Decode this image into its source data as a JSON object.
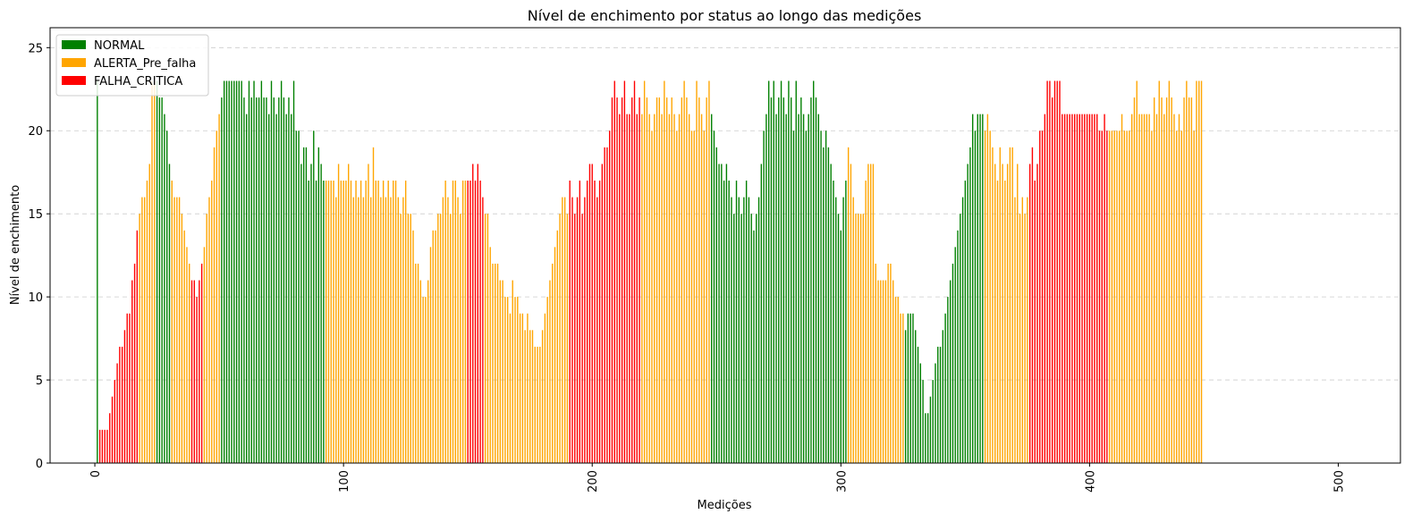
{
  "chart_data": {
    "type": "bar",
    "title": "Nível de enchimento por status ao longo das medições",
    "xlabel": "Medições",
    "ylabel": "Nível de enchimento",
    "xlim": [
      -18,
      525
    ],
    "ylim": [
      0,
      26.2
    ],
    "xticks": [
      0,
      100,
      200,
      300,
      400,
      500
    ],
    "yticks": [
      0,
      5,
      10,
      15,
      20,
      25
    ],
    "x_tick_rotation": 90,
    "grid": "y-dashed",
    "legend_position": "top-left",
    "status_colors": {
      "NORMAL": "#008000",
      "ALERTA_Pre_falha": "#ffa500",
      "FALHA_CRITICA": "#ff0000"
    },
    "legend": [
      "NORMAL",
      "ALERTA_Pre_falha",
      "FALHA_CRITICA"
    ],
    "x_start": 1,
    "values": [
      23,
      2,
      2,
      2,
      2,
      3,
      4,
      5,
      6,
      7,
      7,
      8,
      9,
      9,
      11,
      12,
      14,
      15,
      16,
      16,
      17,
      18,
      23,
      23,
      23,
      22,
      22,
      21,
      20,
      18,
      17,
      16,
      16,
      16,
      15,
      14,
      13,
      12,
      11,
      11,
      10,
      11,
      12,
      13,
      15,
      16,
      17,
      19,
      20,
      21,
      22,
      23,
      23,
      23,
      23,
      23,
      23,
      23,
      23,
      22,
      21,
      23,
      22,
      23,
      22,
      22,
      23,
      22,
      22,
      21,
      23,
      22,
      21,
      22,
      23,
      22,
      21,
      22,
      21,
      23,
      20,
      20,
      18,
      19,
      19,
      17,
      18,
      20,
      17,
      19,
      18,
      17,
      17,
      17,
      17,
      17,
      16,
      18,
      17,
      17,
      17,
      18,
      17,
      16,
      17,
      16,
      17,
      16,
      17,
      18,
      16,
      19,
      17,
      17,
      16,
      17,
      16,
      17,
      16,
      17,
      17,
      16,
      15,
      16,
      17,
      15,
      15,
      14,
      12,
      12,
      11,
      10,
      10,
      11,
      13,
      14,
      14,
      15,
      15,
      16,
      17,
      16,
      15,
      17,
      17,
      16,
      15,
      17,
      17,
      17,
      17,
      18,
      17,
      18,
      17,
      16,
      15,
      15,
      13,
      12,
      12,
      12,
      11,
      11,
      10,
      10,
      9,
      11,
      10,
      10,
      9,
      9,
      8,
      9,
      8,
      8,
      7,
      7,
      7,
      8,
      9,
      10,
      11,
      12,
      13,
      14,
      15,
      16,
      16,
      15,
      17,
      16,
      15,
      16,
      17,
      15,
      16,
      17,
      18,
      18,
      17,
      16,
      17,
      18,
      19,
      19,
      20,
      22,
      23,
      22,
      21,
      22,
      23,
      21,
      21,
      22,
      23,
      21,
      22,
      21,
      23,
      22,
      21,
      20,
      21,
      22,
      22,
      21,
      23,
      22,
      21,
      22,
      21,
      20,
      21,
      22,
      23,
      22,
      21,
      20,
      20,
      23,
      22,
      21,
      20,
      22,
      23,
      21,
      20,
      19,
      18,
      18,
      17,
      18,
      17,
      16,
      15,
      17,
      16,
      15,
      16,
      17,
      16,
      15,
      14,
      15,
      16,
      18,
      20,
      21,
      23,
      22,
      23,
      21,
      22,
      23,
      22,
      21,
      23,
      22,
      20,
      23,
      21,
      22,
      21,
      20,
      21,
      22,
      23,
      22,
      21,
      20,
      19,
      20,
      19,
      18,
      17,
      16,
      15,
      14,
      16,
      17,
      19,
      18,
      16,
      15,
      15,
      15,
      15,
      17,
      18,
      18,
      18,
      12,
      11,
      11,
      11,
      11,
      12,
      12,
      11,
      10,
      10,
      9,
      9,
      8,
      9,
      9,
      9,
      8,
      7,
      6,
      5,
      3,
      3,
      4,
      5,
      6,
      7,
      7,
      8,
      9,
      10,
      11,
      12,
      13,
      14,
      15,
      16,
      17,
      18,
      19,
      21,
      20,
      21,
      21,
      21,
      20,
      21,
      20,
      19,
      18,
      17,
      19,
      18,
      17,
      18,
      19,
      19,
      16,
      18,
      15,
      16,
      15,
      16,
      18,
      19,
      17,
      18,
      20,
      20,
      21,
      23,
      23,
      22,
      23,
      23,
      23,
      21,
      21,
      21,
      21,
      21,
      21,
      21,
      21,
      21,
      21,
      21,
      21,
      21,
      21,
      21,
      20,
      20,
      21,
      20,
      20,
      20,
      20,
      20,
      20,
      21,
      20,
      20,
      20,
      21,
      22,
      23,
      21,
      21,
      21,
      21,
      21,
      20,
      22,
      21,
      23,
      22,
      21,
      22,
      23,
      22,
      21,
      20,
      21,
      20,
      22,
      23,
      22,
      22,
      20,
      23,
      23,
      23
    ],
    "status": "NCCCCCCCCCCCCCCCCAAAAAAANNNNNNAAAAAAAACCCCCAAAAAAANNNNNNNNNNNNNNNNNNNNNNNNNNNNNNNNNNNNNNNNNNAAAAAAAAAAAAAAAAAAAAAAAAAAAAAAAAAAAAAAAAAAAAAAAAAAAAAAAAACCCCCCCAAAAAAAAAAAAAAAAAAAAAAAAAAAAAAAAAACCCCCCCCCCCCCCCCCCCCCCCCCCCCCAAAAAAAAAAAAAAAAAAAAAAAAAAAANNNNNNNNNNNNNNNNNNNNNNNNNNNNNNNNNNNNNNNNNNNNNNNNNNNNNNNAAAAAAAAAAAAAAAAAAAAAAANNNNNNNNNNNNNNNNNNNNNNNNNNNNNNNNAAAAAAAAAAAAAAAAAACCCCCCCCCCCCCCCCCCCCCCCCCCCCCCCCAAAAAAAAAAAAAAAAAAAAAAAAAAAAAAAAAAAAAAAAAAAAAAANNNNNNNNNNNNNNNNNNNNNNNNNNNNNNNNNNNNNNNNNNNNNNNNNNNNNNNNNNNNNNNNNNNNNNNNNNNNNNNNNNNNNNNNNNNNNNNNN"
  }
}
